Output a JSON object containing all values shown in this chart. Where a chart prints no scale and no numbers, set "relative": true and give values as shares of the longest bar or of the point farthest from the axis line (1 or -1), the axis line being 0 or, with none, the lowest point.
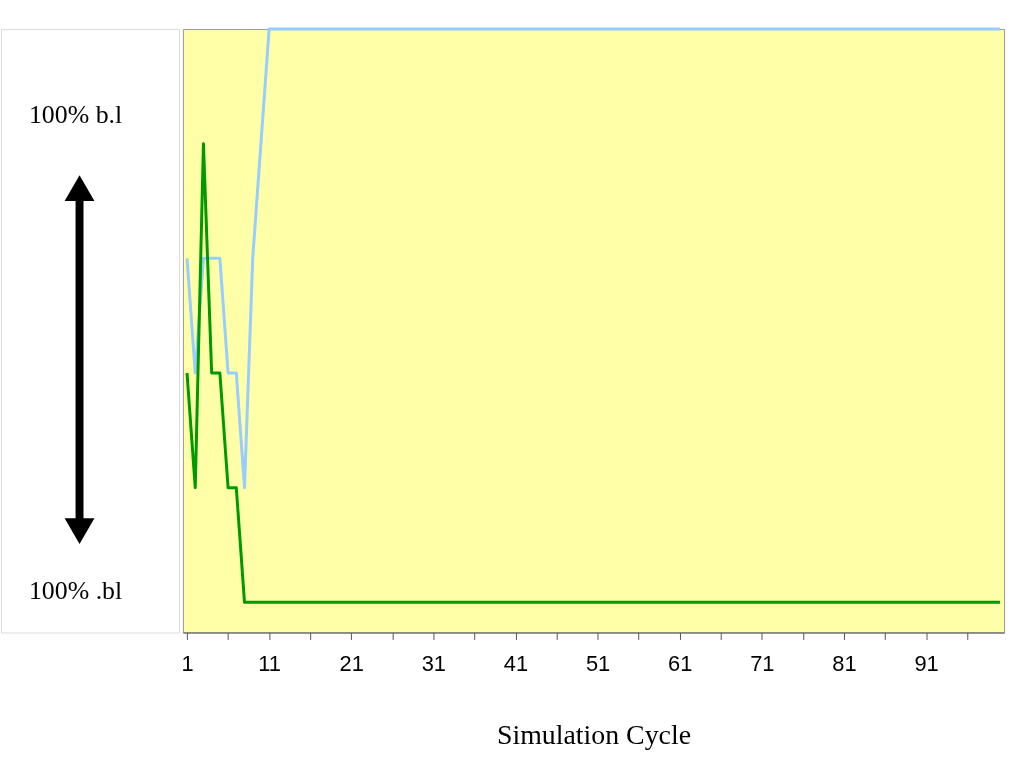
{
  "chart_data": {
    "type": "line",
    "relative": true,
    "xlabel": "Simulation Cycle",
    "annotations": [
      "100%  b.l",
      "100%  .bl"
    ],
    "categories": [
      "1",
      null,
      null,
      null,
      null,
      null,
      null,
      null,
      null,
      null,
      "11",
      null,
      null,
      null,
      null,
      null,
      null,
      null,
      null,
      null,
      "21",
      null,
      null,
      null,
      null,
      null,
      null,
      null,
      null,
      null,
      "31",
      null,
      null,
      null,
      null,
      null,
      null,
      null,
      null,
      null,
      "41",
      null,
      null,
      null,
      null,
      null,
      null,
      null,
      null,
      null,
      "51",
      null,
      null,
      null,
      null,
      null,
      null,
      null,
      null,
      null,
      "61",
      null,
      null,
      null,
      null,
      null,
      null,
      null,
      null,
      null,
      "71",
      null,
      null,
      null,
      null,
      null,
      null,
      null,
      null,
      null,
      "81",
      null,
      null,
      null,
      null,
      null,
      null,
      null,
      null,
      null,
      "91",
      null,
      null,
      null,
      null,
      null,
      null,
      null,
      null,
      null
    ],
    "series": [
      {
        "color": "#99ccff",
        "values": [
          0.62,
          0.43,
          0.62,
          0.62,
          0.62,
          0.43,
          0.43,
          0.24,
          0.62,
          0.81,
          1,
          1,
          1,
          1,
          1,
          1,
          1,
          1,
          1,
          1,
          1,
          1,
          1,
          1,
          1,
          1,
          1,
          1,
          1,
          1,
          1,
          1,
          1,
          1,
          1,
          1,
          1,
          1,
          1,
          1,
          1,
          1,
          1,
          1,
          1,
          1,
          1,
          1,
          1,
          1,
          1,
          1,
          1,
          1,
          1,
          1,
          1,
          1,
          1,
          1,
          1,
          1,
          1,
          1,
          1,
          1,
          1,
          1,
          1,
          1,
          1,
          1,
          1,
          1,
          1,
          1,
          1,
          1,
          1,
          1,
          1,
          1,
          1,
          1,
          1,
          1,
          1,
          1,
          1,
          1,
          1,
          1,
          1,
          1,
          1,
          1,
          1,
          1,
          1,
          1
        ]
      },
      {
        "color": "#009900",
        "values": [
          0.43,
          0.24,
          0.81,
          0.43,
          0.43,
          0.24,
          0.24,
          0.05,
          0.05,
          0.05,
          0.05,
          0.05,
          0.05,
          0.05,
          0.05,
          0.05,
          0.05,
          0.05,
          0.05,
          0.05,
          0.05,
          0.05,
          0.05,
          0.05,
          0.05,
          0.05,
          0.05,
          0.05,
          0.05,
          0.05,
          0.05,
          0.05,
          0.05,
          0.05,
          0.05,
          0.05,
          0.05,
          0.05,
          0.05,
          0.05,
          0.05,
          0.05,
          0.05,
          0.05,
          0.05,
          0.05,
          0.05,
          0.05,
          0.05,
          0.05,
          0.05,
          0.05,
          0.05,
          0.05,
          0.05,
          0.05,
          0.05,
          0.05,
          0.05,
          0.05,
          0.05,
          0.05,
          0.05,
          0.05,
          0.05,
          0.05,
          0.05,
          0.05,
          0.05,
          0.05,
          0.05,
          0.05,
          0.05,
          0.05,
          0.05,
          0.05,
          0.05,
          0.05,
          0.05,
          0.05,
          0.05,
          0.05,
          0.05,
          0.05,
          0.05,
          0.05,
          0.05,
          0.05,
          0.05,
          0.05,
          0.05,
          0.05,
          0.05,
          0.05,
          0.05,
          0.05,
          0.05,
          0.05,
          0.05,
          0.05
        ]
      }
    ]
  }
}
